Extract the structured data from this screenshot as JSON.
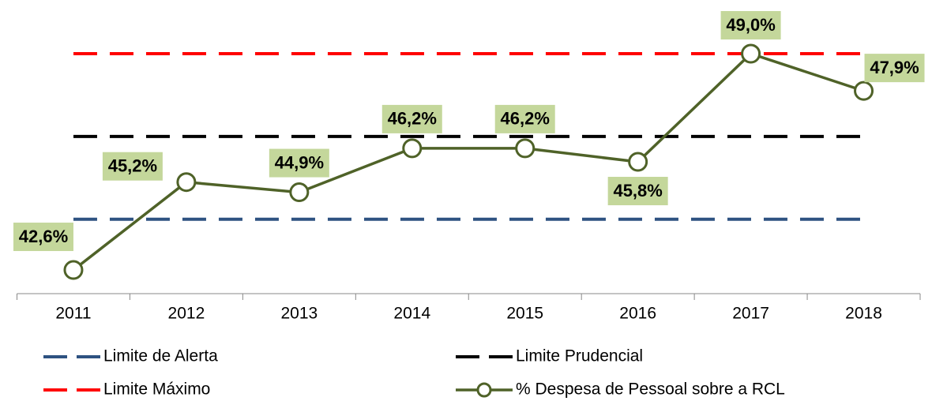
{
  "chart_data": {
    "type": "line",
    "categories": [
      "2011",
      "2012",
      "2013",
      "2014",
      "2015",
      "2016",
      "2017",
      "2018"
    ],
    "series": [
      {
        "name": "Limite de Alerta",
        "color": "#2e5281",
        "dashed": true,
        "values": [
          44.1,
          44.1,
          44.1,
          44.1,
          44.1,
          44.1,
          44.1,
          44.1
        ]
      },
      {
        "name": "Limite Prudencial",
        "color": "#000000",
        "dashed": true,
        "values": [
          46.55,
          46.55,
          46.55,
          46.55,
          46.55,
          46.55,
          46.55,
          46.55
        ]
      },
      {
        "name": "Limite Máximo",
        "color": "#ff0000",
        "dashed": true,
        "values": [
          49,
          49,
          49,
          49,
          49,
          49,
          49,
          49
        ]
      },
      {
        "name": "% Despesa de Pessoal sobre a RCL",
        "color": "#4f6228",
        "marker": "circle",
        "label_color": "#c4d79b",
        "values": [
          42.6,
          45.2,
          44.9,
          46.2,
          46.2,
          45.8,
          49.0,
          47.9
        ],
        "value_labels": [
          "42,6%",
          "45,2%",
          "44,9%",
          "46,2%",
          "46,2%",
          "45,8%",
          "49,0%",
          "47,9%"
        ]
      }
    ],
    "ylim": [
      41.9,
      50
    ]
  }
}
